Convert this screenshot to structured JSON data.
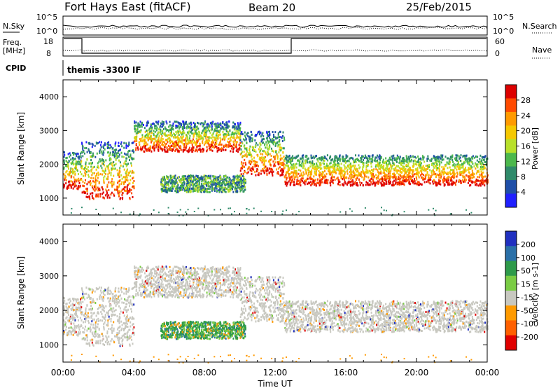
{
  "header": {
    "station": "Fort Hays East (fitACF)",
    "beam": "Beam 20",
    "date": "25/Feb/2015"
  },
  "panels": {
    "nsky_label": "N.Sky",
    "nsky_ticks": [
      "10^5",
      "10^0"
    ],
    "nsearch_label": "N.Search",
    "nsearch_ticks": [
      "10^5",
      "10^0"
    ],
    "freq_label": "Freq.",
    "freq_unit": "[MHz]",
    "freq_ticks": [
      "18",
      "8"
    ],
    "nave_label": "Nave",
    "nave_ticks": [
      "60",
      "0"
    ],
    "cpid_label": "CPID",
    "cpid_value": "themis -3300 IF"
  },
  "chart_data": {
    "type": "heatmap",
    "x_axis": {
      "label": "Time UT",
      "range": [
        "00:00",
        "24:00"
      ],
      "ticks": [
        "00:00",
        "04:00",
        "08:00",
        "12:00",
        "16:00",
        "20:00",
        "00:00"
      ]
    },
    "power_panel": {
      "ylabel": "Slant Range [km]",
      "yticks": [
        "4000",
        "3000",
        "2000",
        "1000"
      ],
      "ylim": [
        500,
        4500
      ],
      "colorbar_label": "Power [dB]",
      "colorbar_ticks": [
        "28",
        "24",
        "20",
        "16",
        "12",
        "8",
        "4"
      ],
      "colorbar_colors": [
        "#dd0000",
        "#ff4a00",
        "#ff9a00",
        "#f5c800",
        "#b8e02a",
        "#4cb84c",
        "#2f8a6a",
        "#1f4fa8",
        "#2020ff"
      ]
    },
    "velocity_panel": {
      "ylabel": "Slant Range [km]",
      "yticks": [
        "4000",
        "3000",
        "2000",
        "1000"
      ],
      "ylim": [
        500,
        4500
      ],
      "colorbar_label": "Velocity [m s-1]",
      "colorbar_ticks": [
        "200",
        "100",
        "50",
        "15",
        "-15",
        "-50",
        "-100",
        "-200"
      ],
      "colorbar_colors": [
        "#2030c0",
        "#2a70a8",
        "#2e9a4a",
        "#7acc44",
        "#c8c8c0",
        "#ff9a00",
        "#ff6000",
        "#e00000"
      ]
    },
    "series": [
      {
        "name": "scatter_bands",
        "bands": [
          {
            "t0": 0.0,
            "t1": 1.0,
            "lo": 1300,
            "hi": 2400
          },
          {
            "t0": 1.0,
            "t1": 4.0,
            "lo": 1000,
            "hi": 2700
          },
          {
            "t0": 4.0,
            "t1": 10.0,
            "lo": 2400,
            "hi": 3300
          },
          {
            "t0": 10.0,
            "t1": 12.5,
            "lo": 1700,
            "hi": 3000
          },
          {
            "t0": 5.5,
            "t1": 10.3,
            "lo": 1200,
            "hi": 1700
          },
          {
            "t0": 12.5,
            "t1": 24.0,
            "lo": 1400,
            "hi": 2300
          }
        ]
      }
    ]
  }
}
